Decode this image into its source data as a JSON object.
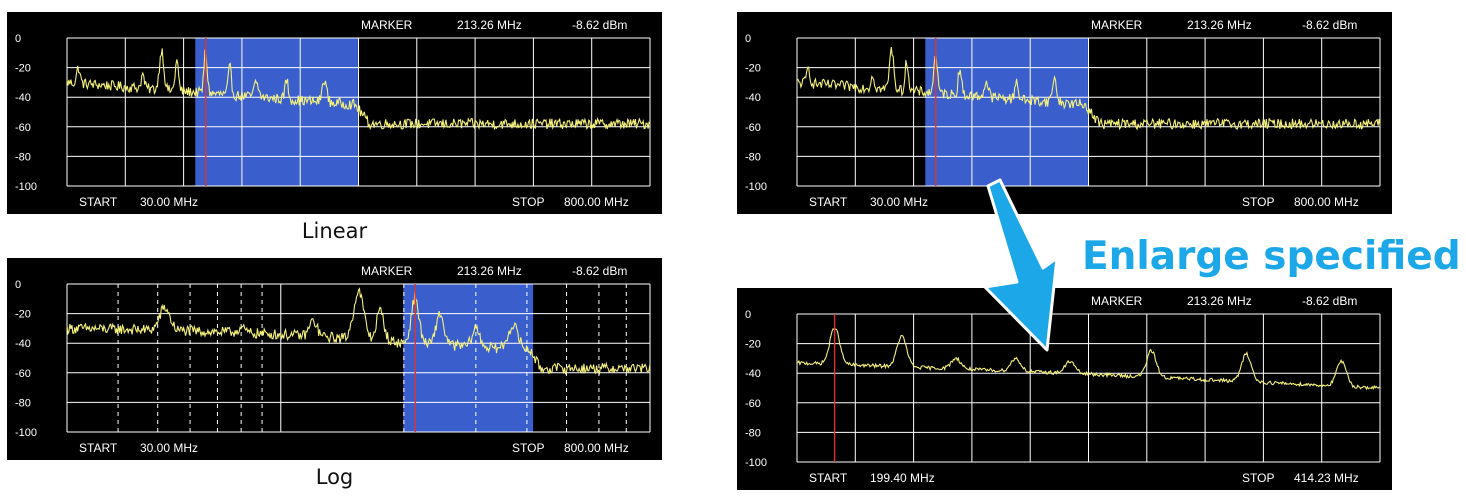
{
  "captions": {
    "linear": "Linear",
    "log": "Log"
  },
  "callout": {
    "text": "Enlarge specified"
  },
  "colors": {
    "trace": "#f4f07a",
    "marker": "#e0342c",
    "highlight": "#3a5fcd",
    "grid": "#ffffff",
    "text": "#ffffff",
    "arrow": "#1ba7e8"
  },
  "chart_data": [
    {
      "id": "linear",
      "type": "line",
      "title": "",
      "xscale": "linear",
      "xlim": [
        30.0,
        800.0
      ],
      "ylim": [
        -100,
        0
      ],
      "yticks": [
        "0",
        "-20",
        "-40",
        "-60",
        "-80",
        "-100"
      ],
      "header": {
        "label": "MARKER",
        "freq": "213.26 MHz",
        "level": "-8.62 dBm"
      },
      "start": {
        "label": "START",
        "value": "30.00 MHz"
      },
      "stop": {
        "label": "STOP",
        "value": "800.00 MHz"
      },
      "marker_mhz": 213.26,
      "highlight_mhz": [
        199.4,
        414.23
      ],
      "peaks": [
        {
          "f": 45,
          "y": -20,
          "w": 3
        },
        {
          "f": 130,
          "y": -25,
          "w": 3
        },
        {
          "f": 155,
          "y": -8,
          "w": 4
        },
        {
          "f": 175,
          "y": -15,
          "w": 3
        },
        {
          "f": 213,
          "y": -9,
          "w": 3
        },
        {
          "f": 245,
          "y": -20,
          "w": 3
        },
        {
          "f": 280,
          "y": -30,
          "w": 4
        },
        {
          "f": 320,
          "y": -28,
          "w": 3
        },
        {
          "f": 370,
          "y": -28,
          "w": 4
        }
      ],
      "baseline": [
        [
          30,
          -30
        ],
        [
          410,
          -45
        ],
        [
          430,
          -58
        ],
        [
          800,
          -58
        ]
      ]
    },
    {
      "id": "log",
      "type": "line",
      "title": "",
      "xscale": "log",
      "xlim": [
        30.0,
        800.0
      ],
      "ylim": [
        -100,
        0
      ],
      "yticks": [
        "0",
        "-20",
        "-40",
        "-60",
        "-80",
        "-100"
      ],
      "header": {
        "label": "MARKER",
        "freq": "213.26 MHz",
        "level": "-8.62 dBm"
      },
      "start": {
        "label": "START",
        "value": "30.00 MHz"
      },
      "stop": {
        "label": "STOP",
        "value": "800.00 MHz"
      },
      "marker_mhz": 213.26,
      "highlight_mhz": [
        199.4,
        414.23
      ],
      "peaks": [
        {
          "f": 52,
          "y": -16,
          "w": 4
        },
        {
          "f": 80,
          "y": -30,
          "w": 3
        },
        {
          "f": 120,
          "y": -25,
          "w": 3
        },
        {
          "f": 155,
          "y": -5,
          "w": 4
        },
        {
          "f": 175,
          "y": -18,
          "w": 3
        },
        {
          "f": 213,
          "y": -9,
          "w": 3
        },
        {
          "f": 245,
          "y": -20,
          "w": 3
        },
        {
          "f": 300,
          "y": -30,
          "w": 3
        },
        {
          "f": 370,
          "y": -28,
          "w": 4
        }
      ],
      "baseline": [
        [
          30,
          -30
        ],
        [
          200,
          -40
        ],
        [
          410,
          -45
        ],
        [
          430,
          -57
        ],
        [
          800,
          -57
        ]
      ]
    },
    {
      "id": "linear-copy",
      "type": "line",
      "title": "",
      "xscale": "linear",
      "xlim": [
        30.0,
        800.0
      ],
      "ylim": [
        -100,
        0
      ],
      "yticks": [
        "0",
        "-20",
        "-40",
        "-60",
        "-80",
        "-100"
      ],
      "header": {
        "label": "MARKER",
        "freq": "213.26 MHz",
        "level": "-8.62 dBm"
      },
      "start": {
        "label": "START",
        "value": "30.00 MHz"
      },
      "stop": {
        "label": "STOP",
        "value": "800.00 MHz"
      },
      "marker_mhz": 213.26,
      "highlight_mhz": [
        199.4,
        414.23
      ],
      "peaks": [
        {
          "f": 45,
          "y": -20,
          "w": 3
        },
        {
          "f": 130,
          "y": -25,
          "w": 3
        },
        {
          "f": 155,
          "y": -8,
          "w": 4
        },
        {
          "f": 175,
          "y": -15,
          "w": 3
        },
        {
          "f": 213,
          "y": -9,
          "w": 3
        },
        {
          "f": 245,
          "y": -20,
          "w": 3
        },
        {
          "f": 280,
          "y": -30,
          "w": 4
        },
        {
          "f": 320,
          "y": -28,
          "w": 3
        },
        {
          "f": 370,
          "y": -28,
          "w": 4
        }
      ],
      "baseline": [
        [
          30,
          -30
        ],
        [
          410,
          -45
        ],
        [
          430,
          -58
        ],
        [
          800,
          -58
        ]
      ]
    },
    {
      "id": "enlarged",
      "type": "line",
      "title": "",
      "xscale": "linear",
      "xlim": [
        199.4,
        414.23
      ],
      "ylim": [
        -100,
        0
      ],
      "yticks": [
        "0",
        "-20",
        "-40",
        "-60",
        "-80",
        "-100"
      ],
      "header": {
        "label": "MARKER",
        "freq": "213.26 MHz",
        "level": "-8.62 dBm"
      },
      "start": {
        "label": "START",
        "value": "199.40 MHz"
      },
      "stop": {
        "label": "STOP",
        "value": "414.23 MHz"
      },
      "marker_mhz": 213.26,
      "highlight_mhz": null,
      "peaks": [
        {
          "f": 213.3,
          "y": -9,
          "w": 2.5
        },
        {
          "f": 238,
          "y": -15,
          "w": 2.5
        },
        {
          "f": 258,
          "y": -30,
          "w": 2.5
        },
        {
          "f": 280,
          "y": -30,
          "w": 2.5
        },
        {
          "f": 300,
          "y": -32,
          "w": 2.5
        },
        {
          "f": 330,
          "y": -25,
          "w": 2.5
        },
        {
          "f": 365,
          "y": -27,
          "w": 2.5
        },
        {
          "f": 400,
          "y": -32,
          "w": 2.5
        }
      ],
      "baseline": [
        [
          199.4,
          -33
        ],
        [
          300,
          -40
        ],
        [
          414.23,
          -50
        ]
      ]
    }
  ]
}
